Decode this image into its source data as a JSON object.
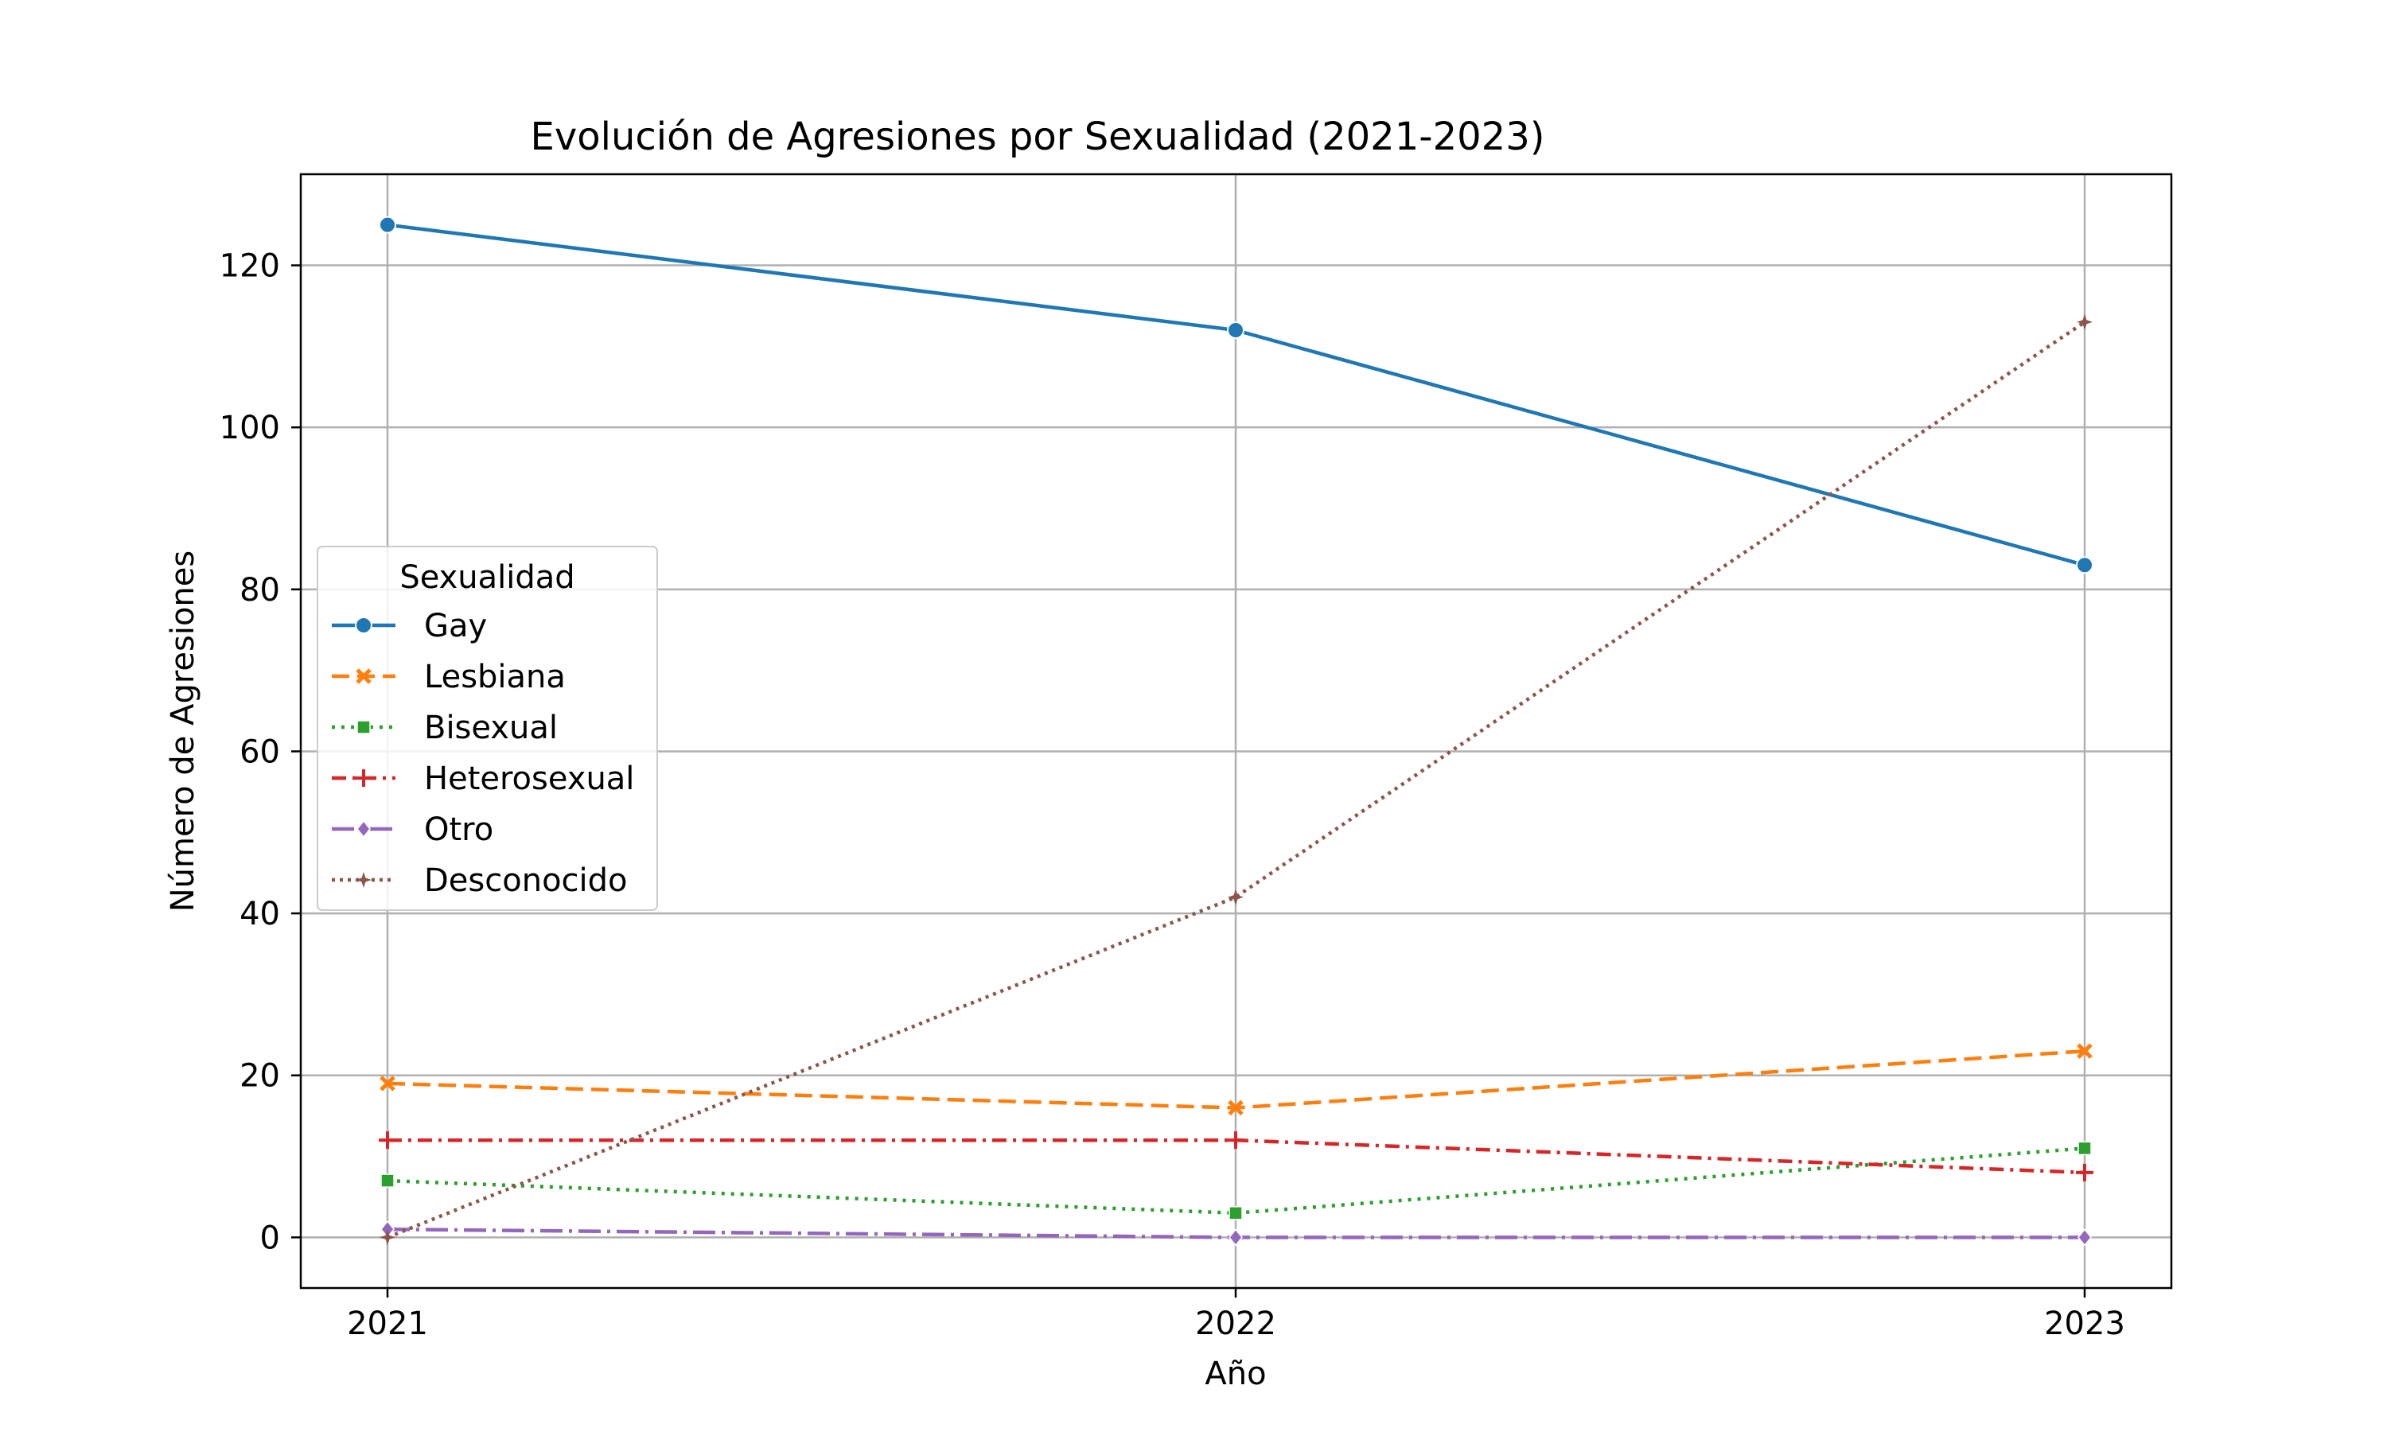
{
  "chart_data": {
    "type": "line",
    "title": "Evolución de Agresiones por Sexualidad (2021-2023)",
    "xlabel": "Año",
    "ylabel": "Número de Agresiones",
    "x": [
      "2021",
      "2022",
      "2023"
    ],
    "yticks": [
      "0",
      "20",
      "40",
      "60",
      "80",
      "100",
      "120"
    ],
    "ylim": [
      -6.25,
      131.25
    ],
    "grid": true,
    "legend": {
      "title": "Sexualidad",
      "placement": "center-left"
    },
    "series": [
      {
        "name": "Gay",
        "values": [
          125,
          112,
          83
        ],
        "color": "#1f77b4",
        "dash": "solid",
        "marker": "circle"
      },
      {
        "name": "Lesbiana",
        "values": [
          19,
          16,
          23
        ],
        "color": "#ff7f0e",
        "dash": "dashed",
        "marker": "x"
      },
      {
        "name": "Bisexual",
        "values": [
          7,
          3,
          11
        ],
        "color": "#2ca02c",
        "dash": "dotted",
        "marker": "square"
      },
      {
        "name": "Heterosexual",
        "values": [
          12,
          12,
          8
        ],
        "color": "#d62728",
        "dash": "dashdot",
        "marker": "plus"
      },
      {
        "name": "Otro",
        "values": [
          1,
          0,
          0
        ],
        "color": "#9467bd",
        "dash": "longdashdot",
        "marker": "diamond"
      },
      {
        "name": "Desconocido",
        "values": [
          0,
          42,
          113
        ],
        "color": "#8c564b",
        "dash": "densedot",
        "marker": "star"
      }
    ]
  }
}
